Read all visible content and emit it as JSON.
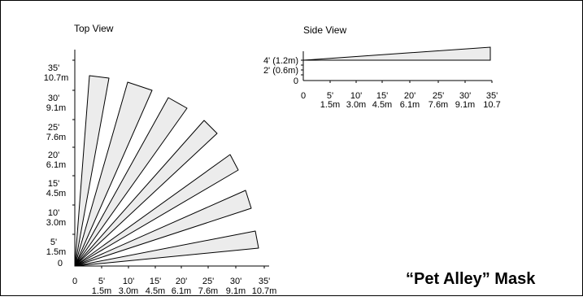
{
  "top_view": {
    "title": "Top View",
    "y_tick_labels": [
      {
        "ft": "0",
        "m": ""
      },
      {
        "ft": "5'",
        "m": "1.5m"
      },
      {
        "ft": "10'",
        "m": "3.0m"
      },
      {
        "ft": "15'",
        "m": "4.5m"
      },
      {
        "ft": "20'",
        "m": "6.1m"
      },
      {
        "ft": "25'",
        "m": "7.6m"
      },
      {
        "ft": "30'",
        "m": "9.1m"
      },
      {
        "ft": "35'",
        "m": "10.7m"
      }
    ],
    "x_tick_labels": [
      {
        "ft": "0",
        "m": ""
      },
      {
        "ft": "5'",
        "m": "1.5m"
      },
      {
        "ft": "10'",
        "m": "3.0m"
      },
      {
        "ft": "15'",
        "m": "4.5m"
      },
      {
        "ft": "20'",
        "m": "6.1m"
      },
      {
        "ft": "25'",
        "m": "7.6m"
      },
      {
        "ft": "30'",
        "m": "9.1m"
      },
      {
        "ft": "35'",
        "m": "10.7m"
      }
    ],
    "zone_count": 7,
    "zone_color": "#ececec"
  },
  "side_view": {
    "title": "Side View",
    "height_labels": [
      "4' (1.2m)",
      "2' (0.6m)",
      "0"
    ],
    "x_tick_labels": [
      {
        "ft": "0",
        "m": ""
      },
      {
        "ft": "5'",
        "m": "1.5m"
      },
      {
        "ft": "10'",
        "m": "3.0m"
      },
      {
        "ft": "15'",
        "m": "4.5m"
      },
      {
        "ft": "20'",
        "m": "6.1m"
      },
      {
        "ft": "25'",
        "m": "7.6m"
      },
      {
        "ft": "30'",
        "m": "9.1m"
      },
      {
        "ft": "35'",
        "m": "10.7"
      }
    ],
    "zone_color": "#ececec"
  },
  "mask_title": "“Pet Alley” Mask"
}
